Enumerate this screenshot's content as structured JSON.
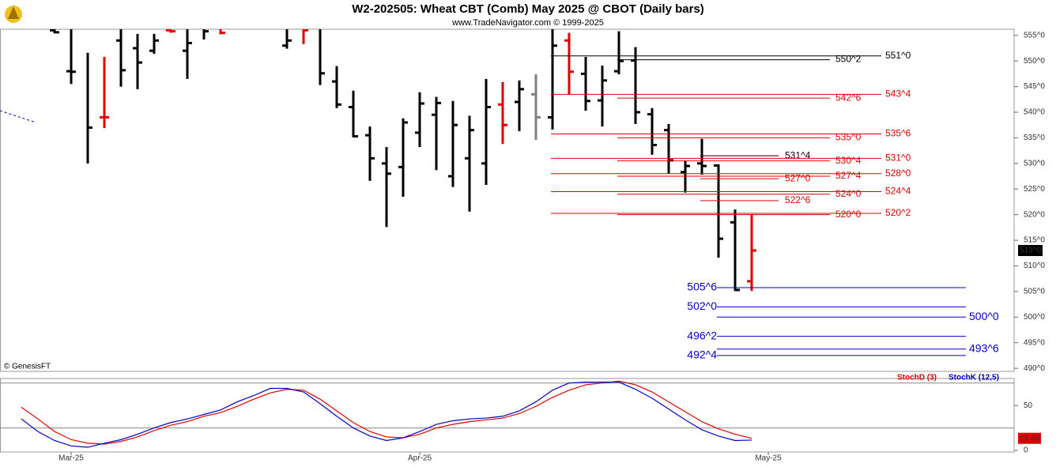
{
  "chart_data": [
    {
      "type": "ohlc",
      "title": "W2-202505:  Wheat CBT (Comb) May 2025 @ CBOT  (Daily bars)",
      "subtitle": "www.TradeNavigator.com © 1999-2025",
      "watermark": "© GenesisFT",
      "categories": [
        null,
        null,
        null,
        null,
        "Mar-25",
        null,
        null,
        null,
        null,
        null,
        null,
        null,
        null,
        null,
        null,
        null,
        null,
        null,
        null,
        null,
        null,
        null,
        null,
        null,
        null,
        "Apr-25",
        null,
        null,
        null,
        null,
        null,
        null,
        null,
        null,
        null,
        null,
        null,
        null,
        null,
        null,
        null,
        null,
        null,
        null,
        null,
        null,
        "May-25"
      ],
      "ylim": [
        489.4,
        556.2
      ],
      "yticks": [
        {
          "value": 490,
          "label": "490^0"
        },
        {
          "value": 495,
          "label": "495^0"
        },
        {
          "value": 500,
          "label": "500^0"
        },
        {
          "value": 505,
          "label": "505^0"
        },
        {
          "value": 510,
          "label": "510^0"
        },
        {
          "value": 515,
          "label": "515^0"
        },
        {
          "value": 520,
          "label": "520^0"
        },
        {
          "value": 525,
          "label": "525^0"
        },
        {
          "value": 530,
          "label": "530^0"
        },
        {
          "value": 535,
          "label": "535^0"
        },
        {
          "value": 540,
          "label": "540^0"
        },
        {
          "value": 545,
          "label": "545^0"
        },
        {
          "value": 550,
          "label": "550^0"
        },
        {
          "value": 555,
          "label": "555^0"
        }
      ],
      "bars": {
        "open": [
          null,
          null,
          null,
          556,
          548,
          null,
          539,
          554,
          552.5,
          552,
          556,
          552,
          null,
          null,
          null,
          null,
          null,
          553,
          null,
          null,
          546,
          541,
          535.5,
          530,
          529.3,
          536,
          539.5,
          527.5,
          531,
          530,
          541.5,
          542,
          543.5,
          539,
          554,
          547.5,
          542.3,
          548,
          550.1,
          539.6,
          536.5,
          528.3,
          530,
          529.6,
          518.5,
          507,
          null
        ],
        "high": [
          null,
          null,
          null,
          558,
          558,
          551.6,
          550.8,
          558,
          555.3,
          555.3,
          556.5,
          558,
          557,
          557,
          null,
          null,
          null,
          558,
          558,
          558,
          549,
          544.2,
          537.2,
          533.2,
          538.8,
          543.9,
          543,
          542.2,
          539.3,
          546.5,
          545.9,
          546.2,
          547.4,
          558,
          555.5,
          550.8,
          549.1,
          555.8,
          552.7,
          540.8,
          537.7,
          530.6,
          534.8,
          529.8,
          521,
          520,
          null
        ],
        "low": [
          null,
          null,
          null,
          555.4,
          545.5,
          530,
          536.9,
          545,
          544.5,
          551.4,
          555.5,
          546.5,
          554.2,
          555.2,
          null,
          null,
          null,
          552.4,
          553.3,
          545.3,
          540.8,
          535.1,
          526.6,
          517.6,
          523.5,
          533.2,
          528.7,
          525.4,
          520.6,
          525.8,
          533.8,
          536.3,
          534.6,
          536.6,
          543.4,
          540.3,
          537.2,
          547.4,
          537.7,
          531.7,
          528,
          524.3,
          527.8,
          511.6,
          505.1,
          505.1,
          null
        ],
        "close": [
          null,
          null,
          null,
          555.6,
          547.9,
          537,
          539,
          548.2,
          549.7,
          554,
          555.8,
          553.5,
          555.8,
          555.5,
          null,
          null,
          null,
          554,
          556,
          547.6,
          541.5,
          535.3,
          531,
          528,
          538,
          541.7,
          541.8,
          537.5,
          536.5,
          541,
          537.5,
          544.5,
          539,
          553,
          547.9,
          542.2,
          546.2,
          550,
          540,
          533.6,
          530.6,
          529.5,
          529.5,
          515.3,
          505.3,
          513,
          null
        ],
        "colors": [
          null,
          null,
          null,
          "#000000",
          "#000000",
          "#000000",
          "#e00000",
          "#000000",
          "#000000",
          "#000000",
          "#e00000",
          "#000000",
          "#000000",
          "#e00000",
          null,
          null,
          null,
          "#000000",
          "#e00000",
          "#000000",
          "#000000",
          "#000000",
          "#000000",
          "#000000",
          "#000000",
          "#000000",
          "#000000",
          "#000000",
          "#000000",
          "#000000",
          "#e00000",
          "#000000",
          "#808080",
          "#000000",
          "#e00000",
          "#000000",
          "#000000",
          "#000000",
          "#000000",
          "#000000",
          "#000000",
          "#000000",
          "#000000",
          "#000000",
          "#000000",
          "#e00000",
          null
        ]
      },
      "levels": [
        {
          "label": "551^0",
          "value": 551,
          "color": "#000000"
        },
        {
          "label": "550^2",
          "value": 550.25,
          "color": "#000000"
        },
        {
          "label": "543^4",
          "value": 543.5,
          "color": "#e00000"
        },
        {
          "label": "542^6",
          "value": 542.75,
          "color": "#e00000"
        },
        {
          "label": "535^6",
          "value": 535.75,
          "color": "#e00000"
        },
        {
          "label": "535^0",
          "value": 535,
          "color": "#e00000"
        },
        {
          "label": "531^4",
          "value": 531.5,
          "color": "#000000"
        },
        {
          "label": "531^0",
          "value": 531,
          "color": "#e00000"
        },
        {
          "label": "530^4",
          "value": 530.5,
          "color": "#e00000"
        },
        {
          "label": "528^0",
          "value": 528,
          "color": "#e00000"
        },
        {
          "label": "527^4",
          "value": 527.5,
          "color": "#e00000"
        },
        {
          "label": "527^0",
          "value": 527,
          "color": "#e00000"
        },
        {
          "label": "524^4",
          "value": 524.5,
          "color": "#e00000"
        },
        {
          "label": "524^0",
          "value": 524,
          "color": "#e00000"
        },
        {
          "label": "522^6",
          "value": 522.75,
          "color": "#e00000"
        },
        {
          "label": "520^2",
          "value": 520.25,
          "color": "#e00000"
        },
        {
          "label": "520^0",
          "value": 520,
          "color": "#e00000"
        },
        {
          "label": "505^6",
          "value": 505.75,
          "color": "#0000cc"
        },
        {
          "label": "502^0",
          "value": 502,
          "color": "#0000cc"
        },
        {
          "label": "500^0",
          "value": 500,
          "color": "#0000cc"
        },
        {
          "label": "496^2",
          "value": 496.25,
          "color": "#0000cc"
        },
        {
          "label": "493^6",
          "value": 493.75,
          "color": "#0000cc"
        },
        {
          "label": "492^4",
          "value": 492.5,
          "color": "#0000cc"
        }
      ],
      "last_price": {
        "value": 513,
        "label": "513^0"
      }
    },
    {
      "type": "line",
      "ylim": [
        -1.75,
        80
      ],
      "yticks": [
        0,
        50
      ],
      "hlines": [
        25,
        75
      ],
      "series": [
        {
          "name": "StochD (3)",
          "color": "#e00000",
          "values": [
            null,
            48,
            35,
            21,
            12,
            8,
            7,
            10,
            15,
            22,
            28,
            32,
            38,
            42,
            49,
            57,
            64,
            68,
            67,
            57,
            44,
            31,
            21,
            15,
            14,
            18,
            25,
            29,
            32,
            34,
            36,
            41,
            49,
            59,
            67,
            73,
            75,
            77,
            73,
            65,
            54,
            43,
            32,
            24,
            18,
            13.46,
            null
          ]
        },
        {
          "name": "StochK (12,5)",
          "color": "#0000cc",
          "values": [
            null,
            35,
            21,
            11,
            5,
            3.5,
            8,
            12,
            18,
            25,
            31,
            35,
            40,
            45,
            54,
            61,
            69,
            69,
            65,
            52,
            38,
            25,
            16,
            11,
            14,
            21,
            29,
            33,
            35,
            36,
            38,
            44,
            54,
            67,
            75,
            76,
            76,
            76,
            68,
            58,
            46,
            34,
            23,
            16,
            11,
            11.5,
            null
          ]
        }
      ],
      "last_value": 13.46
    }
  ]
}
